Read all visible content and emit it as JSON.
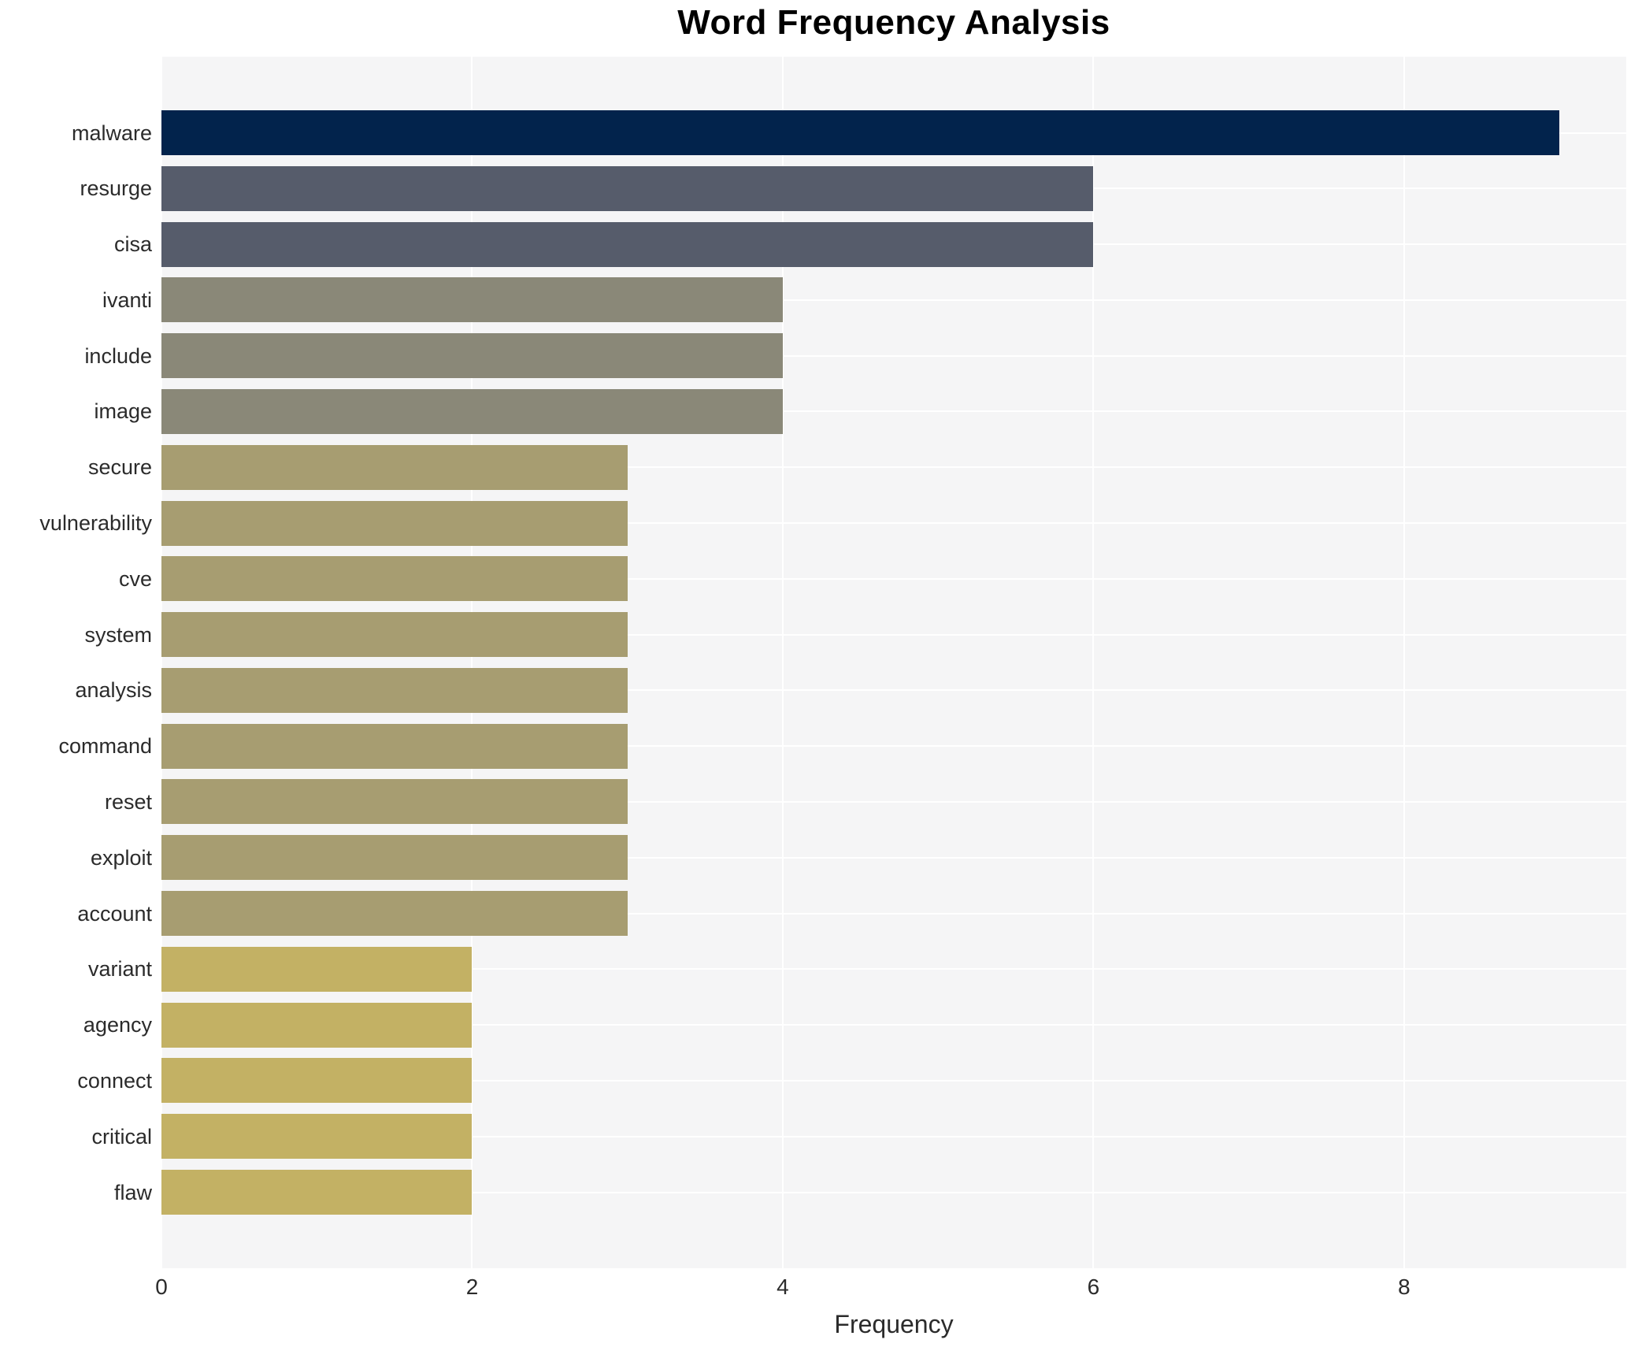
{
  "chart_data": {
    "type": "bar",
    "orientation": "horizontal",
    "title": "Word Frequency Analysis",
    "xlabel": "Frequency",
    "ylabel": "",
    "xlim": [
      0,
      9.43
    ],
    "xticks": [
      "0",
      "2",
      "4",
      "6",
      "8"
    ],
    "xtick_values": [
      0,
      2,
      4,
      6,
      8
    ],
    "grid": true,
    "legend": "none",
    "plot_bg_color": "#f5f5f6",
    "grid_color": "#ffffff",
    "text_color": "#2b2b2b",
    "categories": [
      "malware",
      "resurge",
      "cisa",
      "ivanti",
      "include",
      "image",
      "secure",
      "vulnerability",
      "cve",
      "system",
      "analysis",
      "command",
      "reset",
      "exploit",
      "account",
      "variant",
      "agency",
      "connect",
      "critical",
      "flaw"
    ],
    "values": [
      9,
      6,
      6,
      4,
      4,
      4,
      3,
      3,
      3,
      3,
      3,
      3,
      3,
      3,
      3,
      2,
      2,
      2,
      2,
      2
    ],
    "bar_colors": [
      "#02234c",
      "#565c6b",
      "#565c6b",
      "#8a8878",
      "#8a8878",
      "#8a8878",
      "#a79d71",
      "#a79d71",
      "#a79d71",
      "#a79d71",
      "#a79d71",
      "#a79d71",
      "#a79d71",
      "#a79d71",
      "#a79d71",
      "#c3b164",
      "#c3b164",
      "#c3b164",
      "#c3b164",
      "#c3b164"
    ]
  }
}
